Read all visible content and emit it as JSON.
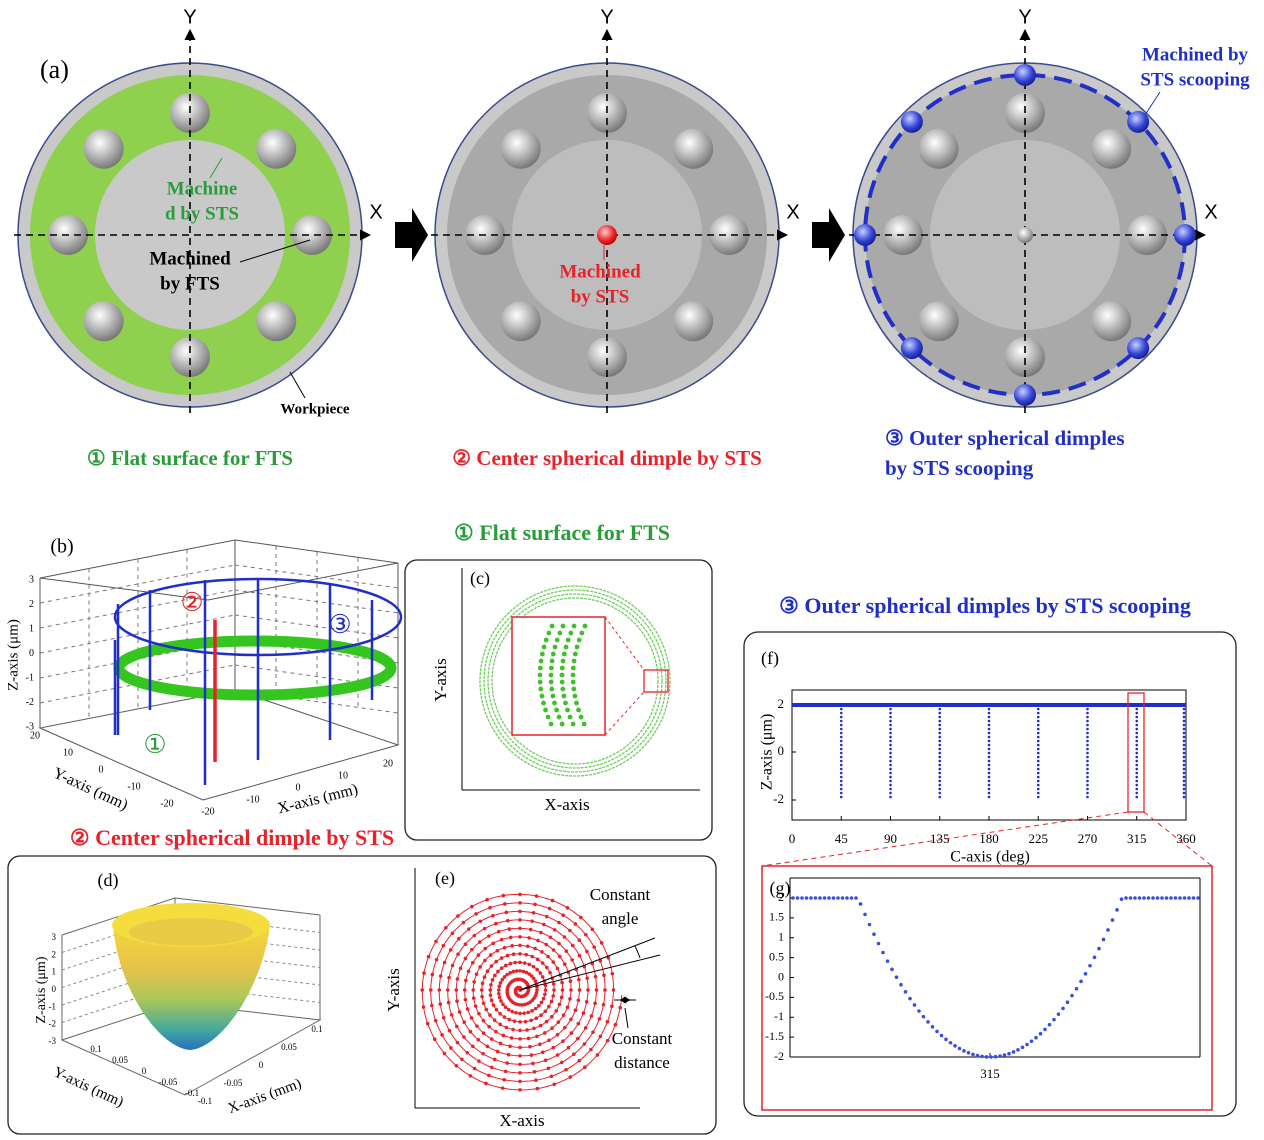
{
  "panel_a": {
    "label": "(a)",
    "axis_x": "X",
    "axis_y": "Y",
    "step1": {
      "callouts": [
        [
          "Machine",
          "d by STS"
        ],
        [
          "Machined",
          "by FTS"
        ],
        [
          "Workpiece"
        ]
      ],
      "caption": [
        "① Flat surface for FTS"
      ]
    },
    "step2": {
      "callouts": [
        [
          "Machined",
          "by STS"
        ]
      ],
      "caption": [
        "② Center spherical dimple by STS"
      ]
    },
    "step3": {
      "callouts": [
        [
          "Machined by",
          "STS scooping"
        ]
      ],
      "caption": [
        "③ Outer spherical dimples",
        "by STS scooping"
      ]
    }
  },
  "panel_b": {
    "label": "(b)",
    "z_label": "Z-axis (μm)",
    "y_label": "Y-axis (mm)",
    "x_label": "X-axis (mm)",
    "z_ticks": [
      "3",
      "2",
      "1",
      "0",
      "-1",
      "-2",
      "-3"
    ],
    "y_ticks": [
      "20",
      "10",
      "0",
      "-10",
      "-20"
    ],
    "x_ticks": [
      "-20",
      "-10",
      "0",
      "10",
      "20"
    ],
    "markers": [
      "②",
      "③",
      "①"
    ]
  },
  "panel_c": {
    "heading": "① Flat surface for FTS",
    "label": "(c)",
    "x_label": "X-axis",
    "y_label": "Y-axis"
  },
  "panel_d_e": {
    "heading": "② Center spherical  dimple by STS",
    "d": {
      "label": "(d)",
      "z_label": "Z-axis (μm)",
      "y_label": "Y-axis (mm)",
      "x_label": "X-axis (mm)",
      "z_ticks": [
        "3",
        "2",
        "1",
        "0",
        "-1",
        "-2",
        "-3"
      ],
      "y_ticks": [
        "0.1",
        "0.05",
        "0",
        "-0.05",
        "-0.1"
      ],
      "x_ticks": [
        "-0.1",
        "-0.05",
        "0",
        "0.05",
        "0.1"
      ]
    },
    "e": {
      "label": "(e)",
      "x_label": "X-axis",
      "y_label": "Y-axis",
      "annotations": [
        [
          "Constant",
          "angle"
        ],
        [
          "Constant",
          "distance"
        ]
      ]
    }
  },
  "panel_f_g": {
    "heading": "③ Outer spherical dimples by STS scooping",
    "f": {
      "label": "(f)",
      "y_label": "Z-axis (μm)",
      "x_label": "C-axis (deg)",
      "x_ticks": [
        "0",
        "45",
        "90",
        "135",
        "180",
        "225",
        "270",
        "315",
        "360"
      ],
      "y_ticks": [
        "2",
        "0",
        "-2"
      ]
    },
    "g": {
      "label": "(g)",
      "y_ticks": [
        "2",
        "1.5",
        "1",
        "0.5",
        "0",
        "-0.5",
        "-1",
        "-1.5",
        "-2"
      ],
      "x_tick": "315"
    }
  }
}
